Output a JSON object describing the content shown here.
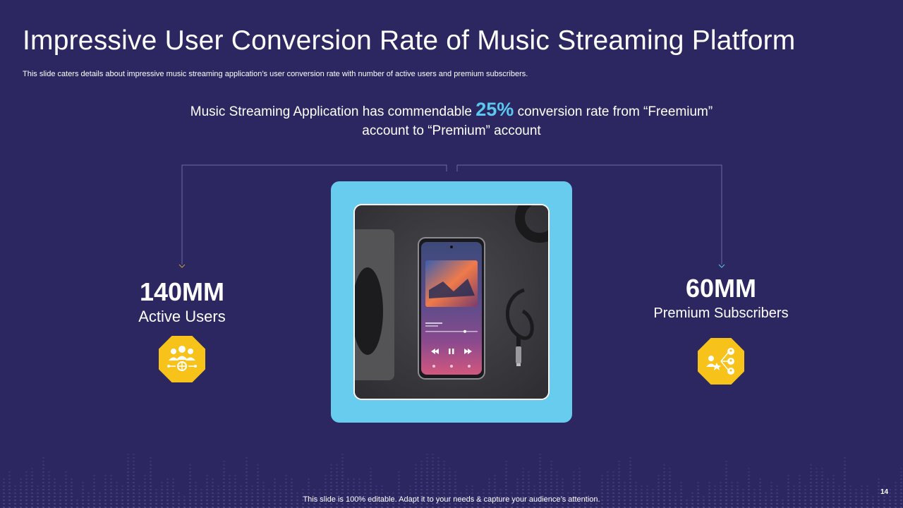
{
  "slide": {
    "title": "Impressive User Conversion Rate of Music Streaming Platform",
    "subtitle": "This slide caters details about impressive music streaming application’s user conversion rate with number of active users and premium subscribers.",
    "headline": {
      "before": "Music Streaming Application has commendable ",
      "percent": "25%",
      "after": " conversion rate from “Freemium” account to “Premium” account"
    },
    "stats": {
      "left": {
        "value": "140MM",
        "label": "Active Users",
        "icon": "users-network-icon"
      },
      "right": {
        "value": "60MM",
        "label": "Premium Subscribers",
        "icon": "user-share-icon"
      }
    },
    "footer": "This slide is 100% editable. Adapt it to your needs & capture your audience’s attention.",
    "page_number": "14"
  },
  "colors": {
    "background": "#2c2760",
    "accent_blue": "#5bc8f0",
    "frame_blue": "#67ccee",
    "badge_yellow": "#f7c21a"
  }
}
